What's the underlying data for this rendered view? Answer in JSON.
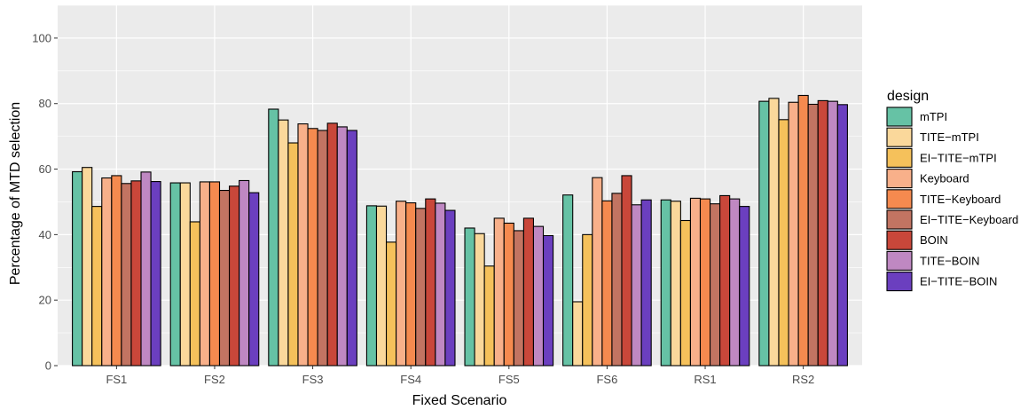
{
  "chart_data": {
    "type": "bar",
    "xlabel": "Fixed Scenario",
    "ylabel": "Percentage of MTD selection",
    "ylim": [
      0,
      110
    ],
    "yticks": [
      0,
      20,
      40,
      60,
      80,
      100
    ],
    "grid": true,
    "legend_title": "design",
    "legend_position": "right",
    "categories": [
      "FS1",
      "FS2",
      "FS3",
      "FS4",
      "FS5",
      "FS6",
      "RS1",
      "RS2"
    ],
    "series": [
      {
        "name": "mTPI",
        "color": "#66c2a5",
        "values": [
          59.2,
          55.8,
          78.3,
          48.8,
          42.0,
          52.1,
          50.6,
          80.7
        ]
      },
      {
        "name": "TITE−mTPI",
        "color": "#fad89b",
        "values": [
          60.5,
          55.8,
          75.0,
          48.7,
          40.3,
          19.5,
          50.2,
          81.6
        ]
      },
      {
        "name": "EI−TITE−mTPI",
        "color": "#f5c15b",
        "values": [
          48.6,
          43.9,
          68.0,
          37.7,
          30.4,
          40.0,
          44.3,
          75.1
        ]
      },
      {
        "name": "Keyboard",
        "color": "#f8b08a",
        "values": [
          57.3,
          56.1,
          73.8,
          50.2,
          45.0,
          57.4,
          51.1,
          80.4
        ]
      },
      {
        "name": "TITE−Keyboard",
        "color": "#f58a4f",
        "values": [
          58.0,
          56.1,
          72.4,
          49.7,
          43.5,
          50.3,
          50.9,
          82.5
        ]
      },
      {
        "name": "EI−TITE−Keyboard",
        "color": "#c27462",
        "values": [
          55.6,
          53.5,
          71.8,
          48.0,
          41.2,
          52.6,
          49.4,
          79.8
        ]
      },
      {
        "name": "BOIN",
        "color": "#c9473a",
        "values": [
          56.4,
          54.8,
          74.0,
          50.9,
          45.0,
          58.0,
          51.9,
          80.9
        ]
      },
      {
        "name": "TITE−BOIN",
        "color": "#bf88c2",
        "values": [
          59.1,
          56.5,
          72.9,
          49.6,
          42.5,
          49.1,
          50.9,
          80.7
        ]
      },
      {
        "name": "EI−TITE−BOIN",
        "color": "#6b3fbf",
        "values": [
          56.2,
          52.8,
          71.8,
          47.4,
          39.7,
          50.6,
          48.6,
          79.7
        ]
      }
    ]
  }
}
